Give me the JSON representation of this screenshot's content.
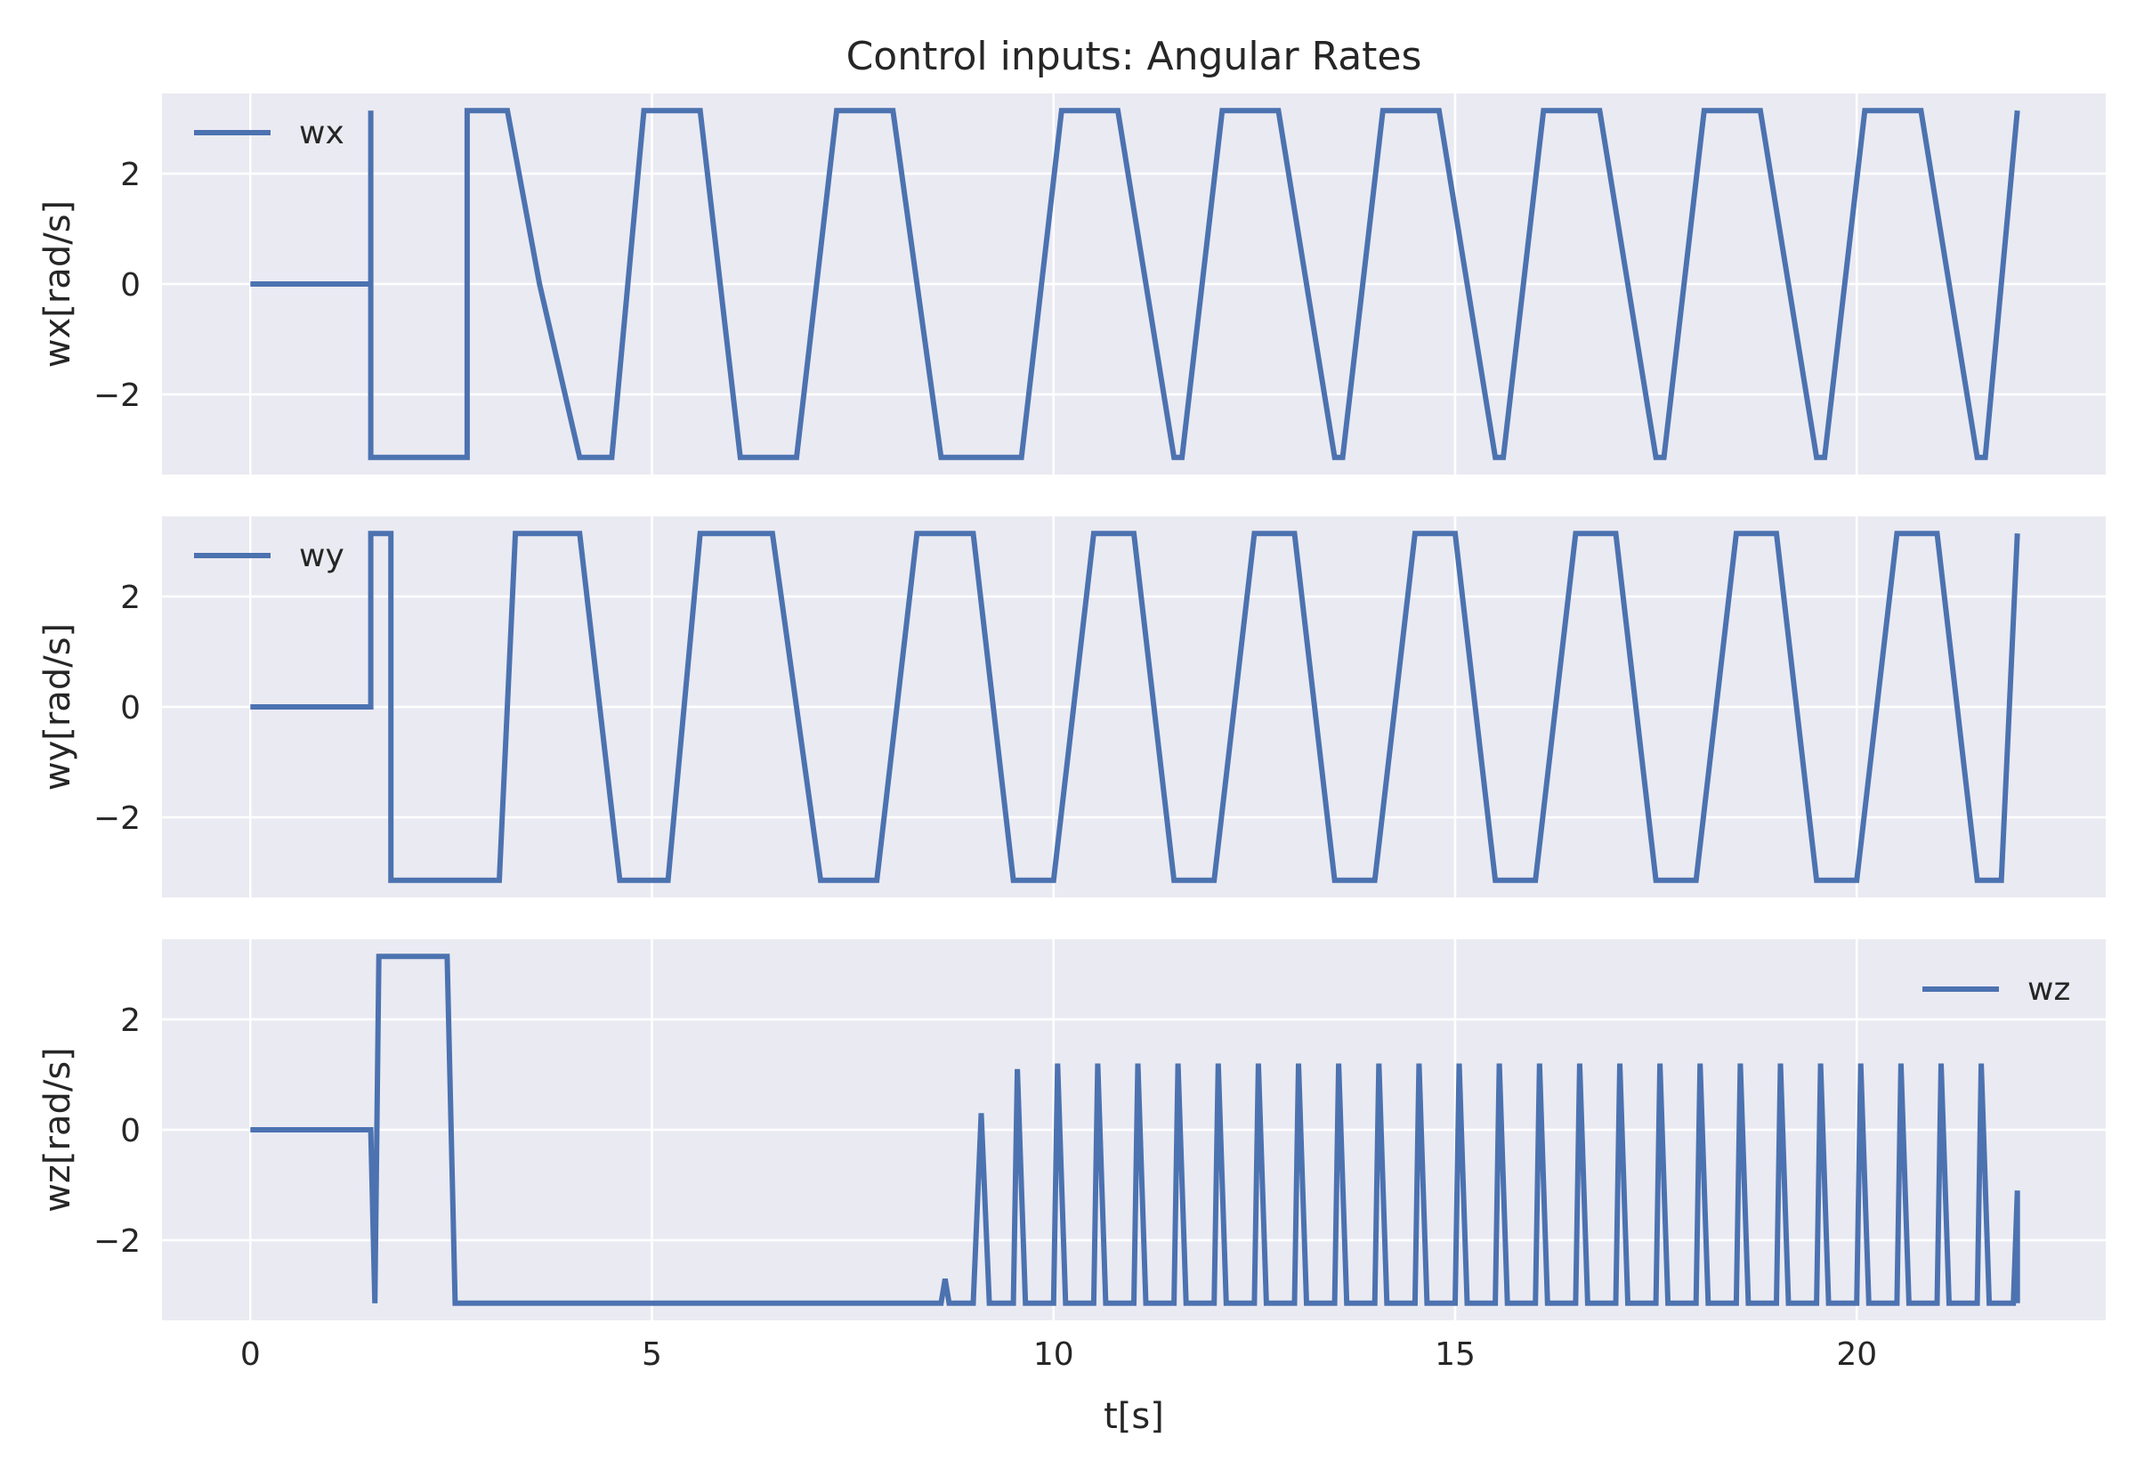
{
  "chart_data": {
    "type": "line",
    "title": "Control inputs: Angular Rates",
    "xlabel": "t[s]",
    "xlim": [
      -1.1,
      23.1
    ],
    "ylim": [
      -3.45,
      3.45
    ],
    "xticks": [
      0,
      5,
      10,
      15,
      20
    ],
    "yticks": [
      -2,
      0,
      2
    ],
    "grid": true,
    "line_color": "#4c72b0",
    "background_color": "#eaeaf2",
    "panels": [
      {
        "id": "wx",
        "ylabel": "wx[rad/s]",
        "legend": "wx",
        "legend_position": "upper-left",
        "series": {
          "name": "wx",
          "points": [
            [
              0,
              0
            ],
            [
              1.5,
              0
            ],
            [
              1.5,
              3.14
            ],
            [
              1.5,
              -3.14
            ],
            [
              2.7,
              -3.14
            ],
            [
              2.7,
              3.14
            ],
            [
              3.2,
              3.14
            ],
            [
              3.6,
              0
            ],
            [
              4.1,
              -3.14
            ],
            [
              4.5,
              -3.14
            ],
            [
              4.9,
              3.14
            ],
            [
              5.6,
              3.14
            ],
            [
              6.1,
              -3.14
            ],
            [
              6.8,
              -3.14
            ],
            [
              7.3,
              3.14
            ],
            [
              8.0,
              3.14
            ],
            [
              8.6,
              -3.14
            ],
            [
              9.6,
              -3.14
            ],
            [
              10.1,
              3.14
            ],
            [
              10.8,
              3.14
            ],
            [
              11.5,
              -3.14
            ],
            [
              11.6,
              -3.14
            ],
            [
              12.1,
              3.14
            ],
            [
              12.8,
              3.14
            ],
            [
              13.5,
              -3.14
            ],
            [
              13.6,
              -3.14
            ],
            [
              14.1,
              3.14
            ],
            [
              14.8,
              3.14
            ],
            [
              15.5,
              -3.14
            ],
            [
              15.6,
              -3.14
            ],
            [
              16.1,
              3.14
            ],
            [
              16.8,
              3.14
            ],
            [
              17.5,
              -3.14
            ],
            [
              17.6,
              -3.14
            ],
            [
              18.1,
              3.14
            ],
            [
              18.8,
              3.14
            ],
            [
              19.5,
              -3.14
            ],
            [
              19.6,
              -3.14
            ],
            [
              20.1,
              3.14
            ],
            [
              20.8,
              3.14
            ],
            [
              21.5,
              -3.14
            ],
            [
              21.6,
              -3.14
            ],
            [
              22.0,
              3.14
            ]
          ]
        }
      },
      {
        "id": "wy",
        "ylabel": "wy[rad/s]",
        "legend": "wy",
        "legend_position": "upper-left",
        "series": {
          "name": "wy",
          "points": [
            [
              0,
              0
            ],
            [
              1.5,
              0
            ],
            [
              1.5,
              3.14
            ],
            [
              1.75,
              3.14
            ],
            [
              1.75,
              -3.14
            ],
            [
              3.1,
              -3.14
            ],
            [
              3.3,
              3.14
            ],
            [
              4.1,
              3.14
            ],
            [
              4.6,
              -3.14
            ],
            [
              5.2,
              -3.14
            ],
            [
              5.6,
              3.14
            ],
            [
              6.5,
              3.14
            ],
            [
              7.1,
              -3.14
            ],
            [
              7.8,
              -3.14
            ],
            [
              8.3,
              3.14
            ],
            [
              9.0,
              3.14
            ],
            [
              9.5,
              -3.14
            ],
            [
              10.0,
              -3.14
            ],
            [
              10.5,
              3.14
            ],
            [
              11.0,
              3.14
            ],
            [
              11.5,
              -3.14
            ],
            [
              12.0,
              -3.14
            ],
            [
              12.5,
              3.14
            ],
            [
              13.0,
              3.14
            ],
            [
              13.5,
              -3.14
            ],
            [
              14.0,
              -3.14
            ],
            [
              14.5,
              3.14
            ],
            [
              15.0,
              3.14
            ],
            [
              15.5,
              -3.14
            ],
            [
              16.0,
              -3.14
            ],
            [
              16.5,
              3.14
            ],
            [
              17.0,
              3.14
            ],
            [
              17.5,
              -3.14
            ],
            [
              18.0,
              -3.14
            ],
            [
              18.5,
              3.14
            ],
            [
              19.0,
              3.14
            ],
            [
              19.5,
              -3.14
            ],
            [
              20.0,
              -3.14
            ],
            [
              20.5,
              3.14
            ],
            [
              21.0,
              3.14
            ],
            [
              21.5,
              -3.14
            ],
            [
              21.8,
              -3.14
            ],
            [
              22.0,
              3.14
            ]
          ]
        }
      },
      {
        "id": "wz",
        "ylabel": "wz[rad/s]",
        "legend": "wz",
        "legend_position": "upper-right",
        "series": {
          "name": "wz",
          "points": [
            [
              0,
              0
            ],
            [
              1.5,
              0
            ],
            [
              1.55,
              -3.14
            ],
            [
              1.6,
              3.14
            ],
            [
              2.45,
              3.14
            ],
            [
              2.5,
              0
            ],
            [
              2.55,
              -3.14
            ],
            [
              8.6,
              -3.14
            ],
            [
              8.65,
              -2.7
            ],
            [
              8.7,
              -3.14
            ],
            [
              9.0,
              -3.14
            ],
            [
              9.1,
              0.3
            ],
            [
              9.2,
              -3.14
            ],
            [
              9.5,
              -3.14
            ],
            [
              9.55,
              1.1
            ],
            [
              9.65,
              -3.14
            ],
            [
              10.0,
              -3.14
            ],
            [
              10.05,
              1.2
            ],
            [
              10.15,
              -3.14
            ],
            [
              10.5,
              -3.14
            ],
            [
              10.55,
              1.2
            ],
            [
              10.65,
              -3.14
            ],
            [
              11.0,
              -3.14
            ],
            [
              11.05,
              1.2
            ],
            [
              11.15,
              -3.14
            ],
            [
              11.5,
              -3.14
            ],
            [
              11.55,
              1.2
            ],
            [
              11.65,
              -3.14
            ],
            [
              12.0,
              -3.14
            ],
            [
              12.05,
              1.2
            ],
            [
              12.15,
              -3.14
            ],
            [
              12.5,
              -3.14
            ],
            [
              12.55,
              1.2
            ],
            [
              12.65,
              -3.14
            ],
            [
              13.0,
              -3.14
            ],
            [
              13.05,
              1.2
            ],
            [
              13.15,
              -3.14
            ],
            [
              13.5,
              -3.14
            ],
            [
              13.55,
              1.2
            ],
            [
              13.65,
              -3.14
            ],
            [
              14.0,
              -3.14
            ],
            [
              14.05,
              1.2
            ],
            [
              14.15,
              -3.14
            ],
            [
              14.5,
              -3.14
            ],
            [
              14.55,
              1.2
            ],
            [
              14.65,
              -3.14
            ],
            [
              15.0,
              -3.14
            ],
            [
              15.05,
              1.2
            ],
            [
              15.15,
              -3.14
            ],
            [
              15.5,
              -3.14
            ],
            [
              15.55,
              1.2
            ],
            [
              15.65,
              -3.14
            ],
            [
              16.0,
              -3.14
            ],
            [
              16.05,
              1.2
            ],
            [
              16.15,
              -3.14
            ],
            [
              16.5,
              -3.14
            ],
            [
              16.55,
              1.2
            ],
            [
              16.65,
              -3.14
            ],
            [
              17.0,
              -3.14
            ],
            [
              17.05,
              1.2
            ],
            [
              17.15,
              -3.14
            ],
            [
              17.5,
              -3.14
            ],
            [
              17.55,
              1.2
            ],
            [
              17.65,
              -3.14
            ],
            [
              18.0,
              -3.14
            ],
            [
              18.05,
              1.2
            ],
            [
              18.15,
              -3.14
            ],
            [
              18.5,
              -3.14
            ],
            [
              18.55,
              1.2
            ],
            [
              18.65,
              -3.14
            ],
            [
              19.0,
              -3.14
            ],
            [
              19.05,
              1.2
            ],
            [
              19.15,
              -3.14
            ],
            [
              19.5,
              -3.14
            ],
            [
              19.55,
              1.2
            ],
            [
              19.65,
              -3.14
            ],
            [
              20.0,
              -3.14
            ],
            [
              20.05,
              1.2
            ],
            [
              20.15,
              -3.14
            ],
            [
              20.5,
              -3.14
            ],
            [
              20.55,
              1.2
            ],
            [
              20.65,
              -3.14
            ],
            [
              21.0,
              -3.14
            ],
            [
              21.05,
              1.2
            ],
            [
              21.15,
              -3.14
            ],
            [
              21.5,
              -3.14
            ],
            [
              21.55,
              1.2
            ],
            [
              21.65,
              -3.14
            ],
            [
              21.95,
              -3.14
            ],
            [
              22.0,
              -1.1
            ],
            [
              22.0,
              -3.14
            ]
          ]
        }
      }
    ]
  }
}
